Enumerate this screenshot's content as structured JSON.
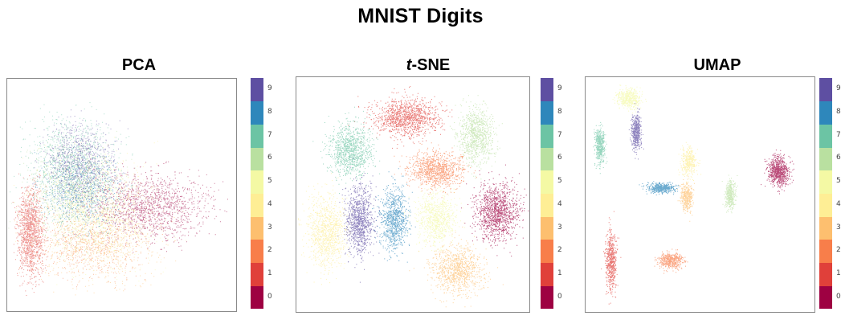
{
  "title": "MNIST Digits",
  "colormap": {
    "name": "Spectral",
    "colors": [
      "#9e0142",
      "#e0403a",
      "#f87e4a",
      "#fdbf6f",
      "#feee95",
      "#f4f9a4",
      "#b9e0a0",
      "#6cc4a4",
      "#2e87bb",
      "#5e4fa2"
    ]
  },
  "colorbar_labels": [
    "0",
    "1",
    "2",
    "3",
    "4",
    "5",
    "6",
    "7",
    "8",
    "9"
  ],
  "panels": [
    {
      "title_prefix": "",
      "title_main": "PCA"
    },
    {
      "title_prefix": "t",
      "title_main": "-SNE"
    },
    {
      "title_prefix": "",
      "title_main": "UMAP"
    }
  ],
  "chart_data": [
    {
      "type": "scatter",
      "title": "PCA",
      "xlabel": "",
      "ylabel": "",
      "colorbar": {
        "min": 0,
        "max": 9,
        "ticks": [
          0,
          1,
          2,
          3,
          4,
          5,
          6,
          7,
          8,
          9
        ]
      },
      "series": [
        {
          "name": "0",
          "color": "#9e0142",
          "clusters": [
            {
              "cx": 0.62,
              "cy": 0.55,
              "rx": 0.24,
              "ry": 0.13,
              "density": 1500
            }
          ]
        },
        {
          "name": "1",
          "color": "#e0403a",
          "clusters": [
            {
              "cx": 0.1,
              "cy": 0.66,
              "rx": 0.05,
              "ry": 0.17,
              "density": 1400
            }
          ]
        },
        {
          "name": "2",
          "color": "#f87e4a",
          "clusters": [
            {
              "cx": 0.34,
              "cy": 0.72,
              "rx": 0.22,
              "ry": 0.12,
              "density": 500
            }
          ]
        },
        {
          "name": "3",
          "color": "#fdbf6f",
          "clusters": [
            {
              "cx": 0.4,
              "cy": 0.71,
              "rx": 0.24,
              "ry": 0.14,
              "density": 800
            }
          ]
        },
        {
          "name": "4",
          "color": "#feee95",
          "clusters": [
            {
              "cx": 0.36,
              "cy": 0.5,
              "rx": 0.22,
              "ry": 0.18,
              "density": 900
            }
          ]
        },
        {
          "name": "5",
          "color": "#f4f9a4",
          "clusters": [
            {
              "cx": 0.4,
              "cy": 0.62,
              "rx": 0.24,
              "ry": 0.18,
              "density": 700
            }
          ]
        },
        {
          "name": "6",
          "color": "#b9e0a0",
          "clusters": [
            {
              "cx": 0.28,
              "cy": 0.5,
              "rx": 0.18,
              "ry": 0.18,
              "density": 800
            }
          ]
        },
        {
          "name": "7",
          "color": "#6cc4a4",
          "clusters": [
            {
              "cx": 0.28,
              "cy": 0.36,
              "rx": 0.17,
              "ry": 0.17,
              "density": 1100
            }
          ]
        },
        {
          "name": "8",
          "color": "#2e87bb",
          "clusters": [
            {
              "cx": 0.32,
              "cy": 0.48,
              "rx": 0.16,
              "ry": 0.15,
              "density": 700
            }
          ]
        },
        {
          "name": "9",
          "color": "#5e4fa2",
          "clusters": [
            {
              "cx": 0.32,
              "cy": 0.36,
              "rx": 0.14,
              "ry": 0.16,
              "density": 900
            }
          ]
        }
      ]
    },
    {
      "type": "scatter",
      "title": "t-SNE",
      "xlabel": "",
      "ylabel": "",
      "colorbar": {
        "min": 0,
        "max": 9,
        "ticks": [
          0,
          1,
          2,
          3,
          4,
          5,
          6,
          7,
          8,
          9
        ]
      },
      "series": [
        {
          "name": "0",
          "color": "#9e0142",
          "clusters": [
            {
              "cx": 0.86,
              "cy": 0.57,
              "rx": 0.11,
              "ry": 0.14,
              "density": 1200
            }
          ]
        },
        {
          "name": "1",
          "color": "#e0403a",
          "clusters": [
            {
              "cx": 0.47,
              "cy": 0.17,
              "rx": 0.17,
              "ry": 0.1,
              "density": 1200
            }
          ]
        },
        {
          "name": "2",
          "color": "#f87e4a",
          "clusters": [
            {
              "cx": 0.6,
              "cy": 0.39,
              "rx": 0.14,
              "ry": 0.09,
              "density": 1000
            }
          ]
        },
        {
          "name": "3",
          "color": "#fdbf6f",
          "clusters": [
            {
              "cx": 0.69,
              "cy": 0.82,
              "rx": 0.13,
              "ry": 0.12,
              "density": 1000
            }
          ]
        },
        {
          "name": "4",
          "color": "#feee95",
          "clusters": [
            {
              "cx": 0.13,
              "cy": 0.66,
              "rx": 0.1,
              "ry": 0.18,
              "density": 1000
            }
          ]
        },
        {
          "name": "5",
          "color": "#f4f9a4",
          "clusters": [
            {
              "cx": 0.6,
              "cy": 0.6,
              "rx": 0.1,
              "ry": 0.13,
              "density": 800
            }
          ]
        },
        {
          "name": "6",
          "color": "#b9e0a0",
          "clusters": [
            {
              "cx": 0.77,
              "cy": 0.25,
              "rx": 0.09,
              "ry": 0.14,
              "density": 900
            }
          ]
        },
        {
          "name": "7",
          "color": "#6cc4a4",
          "clusters": [
            {
              "cx": 0.23,
              "cy": 0.31,
              "rx": 0.11,
              "ry": 0.13,
              "density": 1000
            }
          ]
        },
        {
          "name": "8",
          "color": "#2e87bb",
          "clusters": [
            {
              "cx": 0.42,
              "cy": 0.6,
              "rx": 0.07,
              "ry": 0.16,
              "density": 900
            }
          ]
        },
        {
          "name": "9",
          "color": "#5e4fa2",
          "clusters": [
            {
              "cx": 0.27,
              "cy": 0.61,
              "rx": 0.07,
              "ry": 0.18,
              "density": 1000
            }
          ]
        }
      ]
    },
    {
      "type": "scatter",
      "title": "UMAP",
      "xlabel": "",
      "ylabel": "",
      "colorbar": {
        "min": 0,
        "max": 9,
        "ticks": [
          0,
          1,
          2,
          3,
          4,
          5,
          6,
          7,
          8,
          9
        ]
      },
      "series": [
        {
          "name": "0",
          "color": "#9e0142",
          "clusters": [
            {
              "cx": 0.84,
              "cy": 0.4,
              "rx": 0.055,
              "ry": 0.075,
              "density": 800
            }
          ]
        },
        {
          "name": "1",
          "color": "#e0403a",
          "clusters": [
            {
              "cx": 0.11,
              "cy": 0.78,
              "rx": 0.03,
              "ry": 0.15,
              "density": 600
            }
          ]
        },
        {
          "name": "2",
          "color": "#f87e4a",
          "clusters": [
            {
              "cx": 0.37,
              "cy": 0.78,
              "rx": 0.06,
              "ry": 0.04,
              "density": 500
            }
          ]
        },
        {
          "name": "3",
          "color": "#fdbf6f",
          "clusters": [
            {
              "cx": 0.44,
              "cy": 0.51,
              "rx": 0.03,
              "ry": 0.07,
              "density": 400
            }
          ]
        },
        {
          "name": "4",
          "color": "#feee95",
          "clusters": [
            {
              "cx": 0.45,
              "cy": 0.36,
              "rx": 0.04,
              "ry": 0.07,
              "density": 400
            }
          ]
        },
        {
          "name": "5",
          "color": "#f4f9a4",
          "clusters": [
            {
              "cx": 0.19,
              "cy": 0.09,
              "rx": 0.06,
              "ry": 0.05,
              "density": 500
            }
          ]
        },
        {
          "name": "6",
          "color": "#b9e0a0",
          "clusters": [
            {
              "cx": 0.63,
              "cy": 0.5,
              "rx": 0.025,
              "ry": 0.07,
              "density": 400
            }
          ]
        },
        {
          "name": "7",
          "color": "#6cc4a4",
          "clusters": [
            {
              "cx": 0.06,
              "cy": 0.29,
              "rx": 0.025,
              "ry": 0.09,
              "density": 500
            }
          ]
        },
        {
          "name": "8",
          "color": "#2e87bb",
          "clusters": [
            {
              "cx": 0.33,
              "cy": 0.47,
              "rx": 0.07,
              "ry": 0.025,
              "density": 500
            }
          ]
        },
        {
          "name": "9",
          "color": "#5e4fa2",
          "clusters": [
            {
              "cx": 0.22,
              "cy": 0.23,
              "rx": 0.025,
              "ry": 0.09,
              "density": 500
            }
          ]
        }
      ]
    }
  ]
}
